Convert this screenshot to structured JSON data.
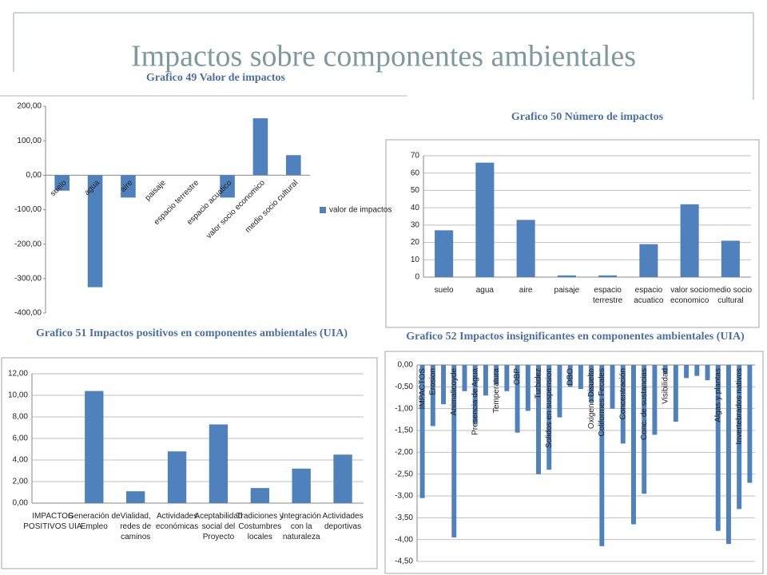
{
  "header": {
    "title": "Impactos sobre componentes ambientales"
  },
  "chart_data": [
    {
      "type": "bar",
      "title": "Grafico 49 Valor de impactos",
      "categories": [
        "suelo",
        "agua",
        "aire",
        "paisaje",
        "espacio terrestre",
        "espacio acuatico",
        "valor socio economico",
        "medio socio cultural"
      ],
      "series": [
        {
          "name": "valor de impactos",
          "color": "#4f81bd",
          "values": [
            -45,
            -325,
            -65,
            0,
            0,
            -65,
            165,
            58
          ]
        }
      ],
      "ylim": [
        -400,
        200
      ],
      "yticks": [
        {
          "value": -400,
          "label": "-400,00"
        },
        {
          "value": -300,
          "label": "-300,00"
        },
        {
          "value": -200,
          "label": "-200,00"
        },
        {
          "value": -100,
          "label": "-100,00"
        },
        {
          "value": 0,
          "label": "0,00"
        },
        {
          "value": 100,
          "label": "100,00"
        },
        {
          "value": 200,
          "label": "200,00"
        }
      ],
      "grid": false,
      "legend": "right"
    },
    {
      "type": "bar",
      "title": "Grafico 50 Número de impactos",
      "categories": [
        "suelo",
        "agua",
        "aire",
        "paisaje",
        "espacio terrestre",
        "espacio acuatico",
        "valor socio economico",
        "medio socio cultural"
      ],
      "values": [
        27,
        66,
        33,
        1,
        1,
        19,
        42,
        21
      ],
      "color": "#4f81bd",
      "ylim": [
        0,
        70
      ],
      "yticks": [
        0,
        10,
        20,
        30,
        40,
        50,
        60,
        70
      ],
      "grid": true
    },
    {
      "type": "bar",
      "title": "Grafico 51 Impactos positivos en componentes ambientales (UIA)",
      "categories": [
        "IMPACTOS POSITIVOS UIA",
        "Generación de Empleo",
        "Vialidad, redes de caminos",
        "Actividades económicas",
        "Aceptabilidad social del Proyecto",
        "Tradiciones y Costumbres locales",
        "Integración con la naturaleza",
        "Actividades deportivas"
      ],
      "values": [
        0,
        10.4,
        1.1,
        4.8,
        7.3,
        1.4,
        3.2,
        4.5
      ],
      "color": "#4f81bd",
      "ylim": [
        0,
        12
      ],
      "yticks": [
        {
          "value": 0,
          "label": "0,00"
        },
        {
          "value": 2,
          "label": "2,00"
        },
        {
          "value": 4,
          "label": "4,00"
        },
        {
          "value": 6,
          "label": "6,00"
        },
        {
          "value": 8,
          "label": "8,00"
        },
        {
          "value": 10,
          "label": "10,00"
        },
        {
          "value": 12,
          "label": "12,00"
        }
      ],
      "grid": true
    },
    {
      "type": "bar",
      "title": "Grafico 52 Impactos insignificantes en componentes ambientales (UIA)",
      "categories": [
        "IMPACTOS",
        "Erosion",
        null,
        "Animalicoyde",
        null,
        "Presencia de Agua",
        null,
        "Temperatura",
        null,
        "OBP",
        null,
        "Turbidez",
        "Solidos en suspension",
        null,
        "DBO",
        null,
        "Oxigeno Disuelto",
        "Coliformes Fecales",
        null,
        "Concentración",
        null,
        "Conc. de sustancias",
        null,
        "Visibilidad",
        null,
        null,
        null,
        null,
        "Algas y plantas",
        null,
        "Invertebrados nativos",
        null
      ],
      "values": [
        -3.05,
        -1.4,
        -0.9,
        -3.95,
        -0.6,
        -1.35,
        -0.7,
        -0.45,
        -0.6,
        -1.55,
        -1.05,
        -2.5,
        -2.4,
        -1.2,
        -0.5,
        -0.55,
        -0.85,
        -4.15,
        -1.0,
        -1.8,
        -3.65,
        -2.95,
        -1.6,
        -0.2,
        -1.3,
        -0.3,
        -0.25,
        -0.35,
        -3.8,
        -4.1,
        -3.3,
        -2.7
      ],
      "color": "#4f81bd",
      "ylim": [
        -4.5,
        0
      ],
      "yticks": [
        {
          "value": -4.5,
          "label": "-4,50"
        },
        {
          "value": -4,
          "label": "-4,00"
        },
        {
          "value": -3.5,
          "label": "-3,50"
        },
        {
          "value": -3,
          "label": "-3,00"
        },
        {
          "value": -2.5,
          "label": "-2,50"
        },
        {
          "value": -2,
          "label": "-2,00"
        },
        {
          "value": -1.5,
          "label": "-1,50"
        },
        {
          "value": -1,
          "label": "-1,00"
        },
        {
          "value": -0.5,
          "label": "-0,50"
        },
        {
          "value": 0,
          "label": "0,00"
        }
      ],
      "grid": true
    }
  ]
}
